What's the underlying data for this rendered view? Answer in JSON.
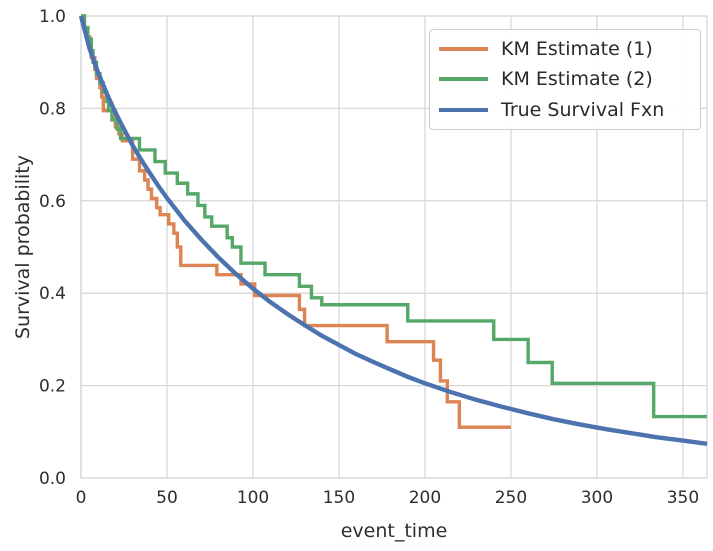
{
  "chart_data": {
    "type": "line",
    "title": "",
    "xlabel": "event_time",
    "ylabel": "Survival probability",
    "xlim": [
      0,
      364
    ],
    "ylim": [
      0,
      1.0
    ],
    "xticks": [
      0,
      50,
      100,
      150,
      200,
      250,
      300,
      350
    ],
    "xtick_labels": [
      "0",
      "50",
      "100",
      "150",
      "200",
      "250",
      "300",
      "350"
    ],
    "yticks": [
      0.0,
      0.2,
      0.4,
      0.6,
      0.8,
      1.0
    ],
    "ytick_labels": [
      "0.0",
      "0.2",
      "0.4",
      "0.6",
      "0.8",
      "1.0"
    ],
    "grid": true,
    "grid_color": "#d8d8d8",
    "background": "#ffffff",
    "legend_position": "upper right",
    "series": [
      {
        "id": "km-estimate-1",
        "name": "KM Estimate (1)",
        "color": "#dd8452",
        "style": "step-post",
        "x": [
          0,
          2,
          3,
          5,
          6,
          8,
          9,
          11,
          12,
          13,
          20,
          22,
          24,
          30,
          34,
          37,
          39,
          41,
          44,
          46,
          51,
          54,
          56,
          58,
          79,
          93,
          101,
          127,
          130,
          178,
          205,
          209,
          213,
          220,
          250
        ],
        "y": [
          1.0,
          0.97,
          0.955,
          0.93,
          0.91,
          0.885,
          0.865,
          0.845,
          0.825,
          0.795,
          0.76,
          0.745,
          0.73,
          0.69,
          0.665,
          0.645,
          0.625,
          0.605,
          0.585,
          0.57,
          0.55,
          0.53,
          0.5,
          0.46,
          0.44,
          0.42,
          0.395,
          0.365,
          0.33,
          0.295,
          0.255,
          0.21,
          0.165,
          0.11,
          0.11
        ]
      },
      {
        "id": "km-estimate-2",
        "name": "KM Estimate (2)",
        "color": "#55a868",
        "style": "step-post",
        "x": [
          0,
          2,
          4,
          6,
          7,
          9,
          11,
          13,
          15,
          16,
          18,
          21,
          23,
          34,
          43,
          49,
          56,
          62,
          68,
          72,
          76,
          85,
          88,
          93,
          107,
          127,
          134,
          140,
          190,
          240,
          260,
          274,
          333,
          364
        ],
        "y": [
          1.0,
          0.975,
          0.95,
          0.925,
          0.9,
          0.875,
          0.855,
          0.835,
          0.815,
          0.795,
          0.775,
          0.755,
          0.735,
          0.71,
          0.685,
          0.66,
          0.638,
          0.615,
          0.59,
          0.565,
          0.545,
          0.52,
          0.5,
          0.465,
          0.44,
          0.415,
          0.39,
          0.375,
          0.34,
          0.3,
          0.25,
          0.205,
          0.133,
          0.133
        ]
      },
      {
        "id": "true-survival-fxn",
        "name": "True Survival Fxn",
        "color": "#4c72b0",
        "style": "smooth",
        "x": [
          0,
          5,
          10,
          15,
          20,
          25,
          30,
          35,
          40,
          45,
          50,
          60,
          70,
          80,
          90,
          100,
          110,
          120,
          130,
          140,
          150,
          160,
          170,
          180,
          190,
          200,
          215,
          230,
          245,
          260,
          275,
          290,
          305,
          320,
          335,
          350,
          364
        ],
        "y": [
          1.0,
          0.929,
          0.877,
          0.832,
          0.791,
          0.755,
          0.72,
          0.689,
          0.66,
          0.632,
          0.606,
          0.558,
          0.516,
          0.477,
          0.442,
          0.41,
          0.381,
          0.355,
          0.331,
          0.308,
          0.288,
          0.268,
          0.251,
          0.235,
          0.219,
          0.205,
          0.186,
          0.169,
          0.154,
          0.14,
          0.127,
          0.116,
          0.106,
          0.097,
          0.088,
          0.081,
          0.074
        ]
      }
    ]
  }
}
